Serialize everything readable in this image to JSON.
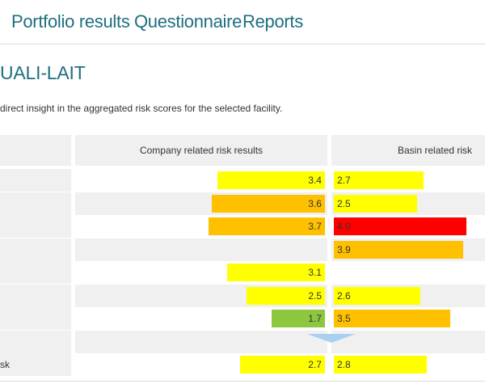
{
  "nav": {
    "tabs": [
      {
        "label": "Portfolio results"
      },
      {
        "label": "Questionnaire"
      },
      {
        "label": "Reports"
      }
    ]
  },
  "page": {
    "title": "UALI-LAIT",
    "intro": "direct insight in the aggregated risk scores for the selected facility."
  },
  "table": {
    "headers": {
      "label": "",
      "company": "Company related risk results",
      "basin": "Basin related risk"
    },
    "scale_max": 5,
    "colors": {
      "yellow": "#ffff00",
      "light_orange": "#ffc000",
      "orange": "#f5a500",
      "red": "#ff0000",
      "green": "#8dc63f",
      "arrow": "#a9d0ee"
    },
    "rows": [
      {
        "label": "",
        "company": {
          "value": "3.4",
          "level": 3.4,
          "color": "#ffff00"
        },
        "basin": {
          "value": "2.7",
          "level": 2.7,
          "color": "#ffff00"
        }
      },
      {
        "label": "",
        "company": {
          "value": "3.6",
          "level": 3.6,
          "color": "#ffc000"
        },
        "basin": {
          "value": "2.5",
          "level": 2.5,
          "color": "#ffff00"
        }
      },
      {
        "label": "",
        "company": {
          "value": "3.7",
          "level": 3.7,
          "color": "#ffc000"
        },
        "basin": {
          "value": "4.0",
          "level": 4.0,
          "color": "#ff0000"
        }
      },
      {
        "label": "",
        "company": null,
        "basin": {
          "value": "3.9",
          "level": 3.9,
          "color": "#ffc000"
        }
      },
      {
        "label": "",
        "company": {
          "value": "3.1",
          "level": 3.1,
          "color": "#ffff00"
        },
        "basin": null
      },
      {
        "label": "",
        "company": {
          "value": "2.5",
          "level": 2.5,
          "color": "#ffff00"
        },
        "basin": {
          "value": "2.6",
          "level": 2.6,
          "color": "#ffff00"
        }
      },
      {
        "label": "",
        "company": {
          "value": "1.7",
          "level": 1.7,
          "color": "#8dc63f"
        },
        "basin": {
          "value": "3.5",
          "level": 3.5,
          "color": "#ffc000"
        }
      },
      {
        "label": "",
        "company": null,
        "basin": null,
        "arrow": true
      },
      {
        "label": "sk",
        "company": {
          "value": "2.7",
          "level": 2.7,
          "color": "#ffff00"
        },
        "basin": {
          "value": "2.8",
          "level": 2.8,
          "color": "#ffff00"
        }
      }
    ]
  }
}
